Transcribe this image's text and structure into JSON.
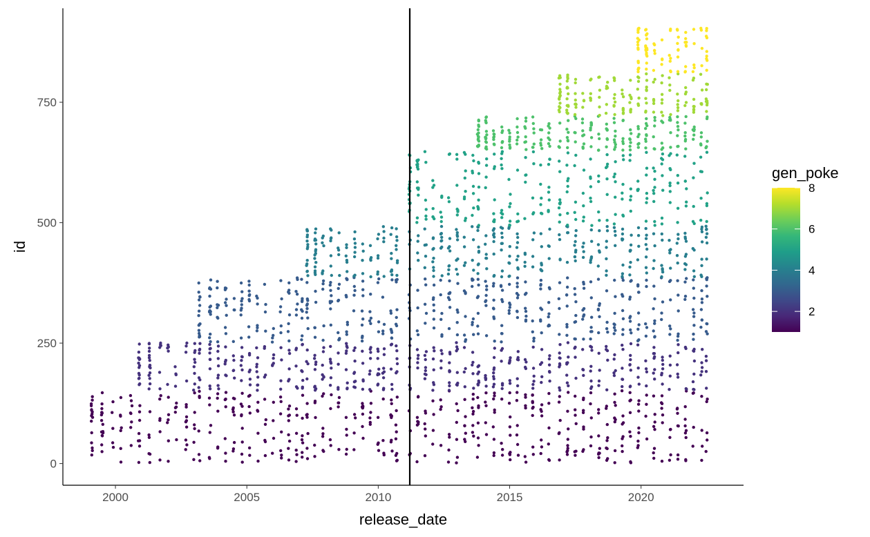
{
  "chart_data": {
    "type": "scatter",
    "xlabel": "release_date",
    "ylabel": "id",
    "x_ticks": [
      2000,
      2005,
      2010,
      2015,
      2020
    ],
    "y_ticks": [
      0,
      250,
      500,
      750
    ],
    "xlim": [
      1998.0,
      2023.9
    ],
    "ylim": [
      -45,
      945
    ],
    "vertical_reference_line": {
      "x": 2011.2
    },
    "color_scale": {
      "variable": "gen_poke",
      "palette": "viridis",
      "range": [
        1,
        8
      ],
      "ticks": [
        2,
        4,
        6,
        8
      ],
      "stops": [
        "#440154",
        "#482878",
        "#3e4a89",
        "#31688e",
        "#26828e",
        "#1f9e89",
        "#35b779",
        "#6ece58",
        "#b5de2b",
        "#fde725"
      ]
    },
    "generations": [
      {
        "gen": 1,
        "id_range": [
          1,
          151
        ]
      },
      {
        "gen": 2,
        "id_range": [
          152,
          251
        ]
      },
      {
        "gen": 3,
        "id_range": [
          252,
          386
        ]
      },
      {
        "gen": 4,
        "id_range": [
          387,
          493
        ]
      },
      {
        "gen": 5,
        "id_range": [
          494,
          649
        ]
      },
      {
        "gen": 6,
        "id_range": [
          650,
          721
        ]
      },
      {
        "gen": 7,
        "id_range": [
          722,
          809
        ]
      },
      {
        "gen": 8,
        "id_range": [
          810,
          905
        ]
      }
    ],
    "generation_first_release": [
      1999.1,
      2000.9,
      2003.2,
      2007.3,
      2011.2,
      2013.8,
      2016.9,
      2019.9
    ],
    "release_columns": [
      1999.1,
      1999.5,
      1999.9,
      2000.2,
      2000.6,
      2000.9,
      2001.3,
      2001.7,
      2002.0,
      2002.3,
      2002.7,
      2003.0,
      2003.2,
      2003.6,
      2003.9,
      2004.2,
      2004.5,
      2004.8,
      2005.1,
      2005.4,
      2005.7,
      2006.0,
      2006.3,
      2006.6,
      2006.9,
      2007.1,
      2007.3,
      2007.6,
      2007.9,
      2008.2,
      2008.5,
      2008.8,
      2009.1,
      2009.4,
      2009.7,
      2010.0,
      2010.2,
      2010.5,
      2010.7,
      2011.2,
      2011.5,
      2011.8,
      2012.1,
      2012.4,
      2012.7,
      2013.0,
      2013.3,
      2013.6,
      2013.8,
      2014.1,
      2014.4,
      2014.7,
      2015.0,
      2015.3,
      2015.6,
      2015.9,
      2016.2,
      2016.5,
      2016.9,
      2017.2,
      2017.5,
      2017.8,
      2018.1,
      2018.4,
      2018.7,
      2019.0,
      2019.3,
      2019.6,
      2019.9,
      2020.2,
      2020.5,
      2020.8,
      2021.1,
      2021.4,
      2021.7,
      2022.0,
      2022.3,
      2022.5
    ]
  }
}
